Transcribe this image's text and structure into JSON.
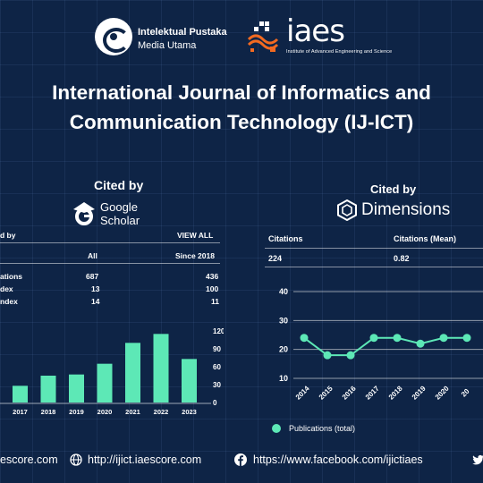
{
  "header": {
    "ipmu_line1": "Intelektual Pustaka",
    "ipmu_line2": "Media Utama",
    "iaes_word": "iaes",
    "iaes_tagline": "Institute of Advanced Engineering and Science"
  },
  "title": {
    "line1": "International Journal of Informatics and",
    "line2": "Communication Technology (IJ-ICT)"
  },
  "scholar": {
    "cited_by": "Cited by",
    "brand_line1": "Google",
    "brand_line2": "Scholar",
    "table_header_left": "d by",
    "view_all": "VIEW ALL",
    "col_all": "All",
    "col_since": "Since 2018",
    "rows": [
      {
        "label": "ations",
        "all": "687",
        "since": "436"
      },
      {
        "label": "dex",
        "all": "13",
        "since": "100"
      },
      {
        "label": "ndex",
        "all": "14",
        "since": "11"
      }
    ],
    "chart_data": {
      "type": "bar",
      "categories": [
        "2017",
        "2018",
        "2019",
        "2020",
        "2021",
        "2022",
        "2023"
      ],
      "values": [
        28,
        45,
        47,
        65,
        100,
        115,
        73
      ],
      "ylim": [
        0,
        120
      ],
      "yticks": [
        "120",
        "90",
        "60",
        "30",
        "0"
      ],
      "color": "#5de8b6"
    }
  },
  "dimensions": {
    "cited_by": "Cited by",
    "brand": "Dimensions",
    "citations_label": "Citations",
    "citations_value": "224",
    "mean_label": "Citations (Mean)",
    "mean_value": "0.82",
    "chart_data": {
      "type": "line",
      "x": [
        "2014",
        "2015",
        "2016",
        "2017",
        "2018",
        "2019",
        "2020",
        "20"
      ],
      "series": [
        {
          "name": "Publications (total)",
          "values": [
            24,
            18,
            18,
            24,
            24,
            22,
            24,
            24
          ]
        }
      ],
      "ylim": [
        10,
        40
      ],
      "yticks": [
        "40",
        "30",
        "20",
        "10"
      ],
      "color": "#5de8b6",
      "legend": "bottom"
    }
  },
  "footer": {
    "left_text": "escore.com",
    "site": "http://ijict.iaescore.com",
    "facebook": "https://www.facebook.com/ijictiaes"
  }
}
